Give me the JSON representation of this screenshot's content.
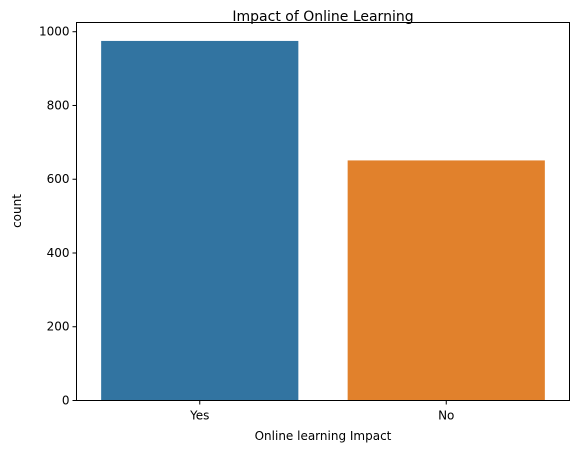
{
  "chart_data": {
    "type": "bar",
    "title": "Impact of Online Learning",
    "xlabel": "Online learning Impact",
    "ylabel": "count",
    "categories": [
      "Yes",
      "No"
    ],
    "values": [
      975,
      651
    ],
    "colors": [
      "#3274a1",
      "#e1812c"
    ],
    "ylim": [
      0,
      1025
    ],
    "yticks": [
      0,
      200,
      400,
      600,
      800,
      1000
    ],
    "grid": false,
    "legend": "none"
  }
}
